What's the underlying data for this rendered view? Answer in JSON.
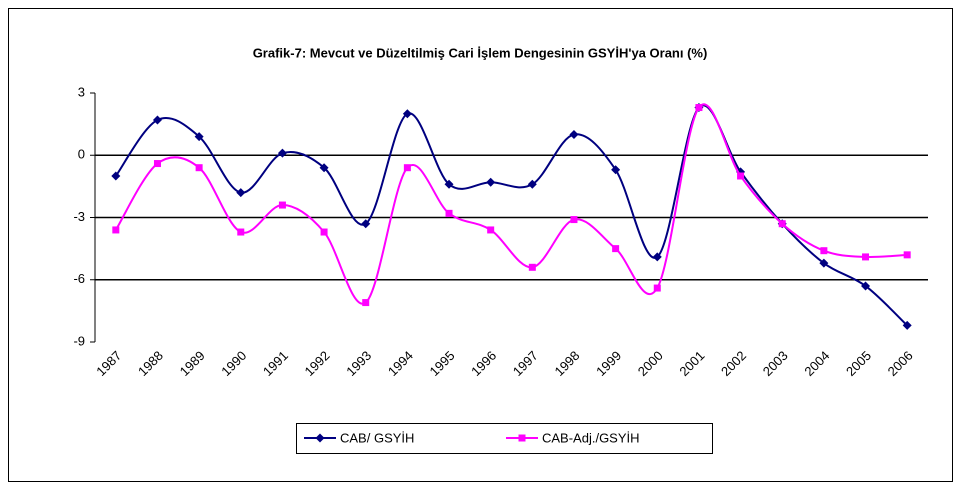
{
  "chart_data": {
    "type": "line",
    "title": "Grafik-7: Mevcut ve Düzeltilmiş Cari İşlem Dengesinin GSYİH'ya Oranı (%)",
    "categories": [
      "1987",
      "1988",
      "1989",
      "1990",
      "1991",
      "1992",
      "1993",
      "1994",
      "1995",
      "1996",
      "1997",
      "1998",
      "1999",
      "2000",
      "2001",
      "2002",
      "2003",
      "2004",
      "2005",
      "2006"
    ],
    "series": [
      {
        "name": "CAB/ GSYİH",
        "color": "#000080",
        "marker": "diamond",
        "values": [
          -1.0,
          1.7,
          0.9,
          -1.8,
          0.1,
          -0.6,
          -3.3,
          2.0,
          -1.4,
          -1.3,
          -1.4,
          1.0,
          -0.7,
          -4.9,
          2.3,
          -0.8,
          -3.3,
          -5.2,
          -6.3,
          -8.2
        ]
      },
      {
        "name": "CAB-Adj./GSYİH",
        "color": "#ff00ff",
        "marker": "square",
        "values": [
          -3.6,
          -0.4,
          -0.6,
          -3.7,
          -2.4,
          -3.7,
          -7.1,
          -0.6,
          -2.8,
          -3.6,
          -5.4,
          -3.1,
          -4.5,
          -6.4,
          2.3,
          -1.0,
          -3.3,
          -4.6,
          -4.9,
          -4.8
        ]
      }
    ],
    "ylim": [
      -9,
      3
    ],
    "yticks": [
      3,
      0,
      -3,
      -6,
      -9
    ],
    "grid": true,
    "smooth": true,
    "legend": "bottom"
  }
}
